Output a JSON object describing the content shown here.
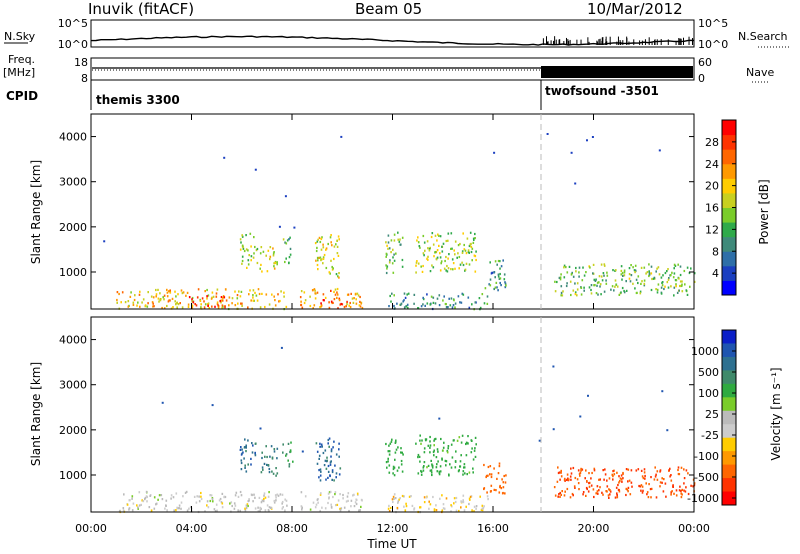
{
  "header": {
    "station": "Inuvik (fitACF)",
    "beam": "Beam 05",
    "date": "10/Mar/2012"
  },
  "meta_panels": {
    "nsky_label": "N.Sky",
    "nsearch_label": "N.Search",
    "freq_label": "Freq.",
    "freq_unit": "[MHz]",
    "nave_label": "Nave",
    "cpid_label": "CPID",
    "noise_ticks_left": [
      "10^5",
      "10^0"
    ],
    "noise_ticks_right": [
      "10^5",
      "10^0"
    ],
    "freq_ticks": [
      "18",
      "8"
    ],
    "nave_ticks": [
      "60",
      "0"
    ],
    "cpid_segments": [
      {
        "name": "themis 3300",
        "start_hour": 0,
        "end_hour": 18
      },
      {
        "name": "twofsound -3501",
        "start_hour": 18,
        "end_hour": 24
      }
    ]
  },
  "chart_data": [
    {
      "type": "heatmap",
      "quantity": "Power",
      "ylabel": "Slant Range [km]",
      "ylim": [
        180,
        4500
      ],
      "y_ticks": [
        1000,
        2000,
        3000,
        4000
      ],
      "xlim": [
        0,
        24
      ],
      "colorbar": {
        "label": "Power [dB]",
        "range": [
          0,
          32
        ],
        "ticks": [
          "4",
          "8",
          "12",
          "16",
          "20",
          "24",
          "28"
        ],
        "colors": [
          "#0000ff",
          "#1b3fc0",
          "#2e6fa8",
          "#3f8a7a",
          "#2faa4a",
          "#7acc2a",
          "#c8d020",
          "#ffcc00",
          "#ff9900",
          "#ff6600",
          "#ff3300",
          "#ff0000"
        ]
      },
      "scatter_regions": [
        {
          "hour_start": 1.0,
          "hour_end": 7.8,
          "range_min": 200,
          "range_max": 650,
          "value": 20
        },
        {
          "hour_start": 3.8,
          "hour_end": 5.4,
          "range_min": 220,
          "range_max": 500,
          "value": 28
        },
        {
          "hour_start": 8.3,
          "hour_end": 10.8,
          "range_min": 220,
          "range_max": 650,
          "value": 22
        },
        {
          "hour_start": 9.0,
          "hour_end": 10.2,
          "range_min": 220,
          "range_max": 450,
          "value": 28
        },
        {
          "hour_start": 11.8,
          "hour_end": 15.8,
          "range_min": 200,
          "range_max": 550,
          "value": 10
        },
        {
          "hour_start": 5.9,
          "hour_end": 6.6,
          "range_min": 1100,
          "range_max": 1900,
          "value": 16
        },
        {
          "hour_start": 6.7,
          "hour_end": 7.4,
          "range_min": 1000,
          "range_max": 1600,
          "value": 18
        },
        {
          "hour_start": 7.6,
          "hour_end": 8.0,
          "range_min": 1200,
          "range_max": 1800,
          "value": 12
        },
        {
          "hour_start": 8.9,
          "hour_end": 9.9,
          "range_min": 900,
          "range_max": 1850,
          "value": 18
        },
        {
          "hour_start": 11.7,
          "hour_end": 12.4,
          "range_min": 1000,
          "range_max": 1900,
          "value": 14
        },
        {
          "hour_start": 12.9,
          "hour_end": 15.3,
          "range_min": 1000,
          "range_max": 1900,
          "value": 16
        },
        {
          "hour_start": 15.6,
          "hour_end": 16.5,
          "range_min": 600,
          "range_max": 1300,
          "value": 10
        },
        {
          "hour_start": 18.4,
          "hour_end": 24.0,
          "range_min": 500,
          "range_max": 1200,
          "value": 14
        }
      ]
    },
    {
      "type": "heatmap",
      "quantity": "Velocity",
      "ylabel": "Slant Range [km]",
      "ylim": [
        180,
        4500
      ],
      "y_ticks": [
        1000,
        2000,
        3000,
        4000
      ],
      "xlim": [
        0,
        24
      ],
      "xlabel": "Time UT",
      "x_ticks": [
        "00:00",
        "04:00",
        "08:00",
        "12:00",
        "16:00",
        "20:00",
        "00:00"
      ],
      "colorbar": {
        "label": "Velocity [m s⁻¹]",
        "ticks": [
          "1000",
          "500",
          "100",
          "25",
          "-25",
          "-100",
          "-500",
          "-1000"
        ],
        "colors": [
          "#0b1fc8",
          "#1f55b0",
          "#2e7090",
          "#3f8a6a",
          "#2faa40",
          "#7acc2a",
          "#bbbbbb",
          "#cccccc",
          "#ffcc00",
          "#ff9900",
          "#ff6600",
          "#ff3300",
          "#ff0000"
        ]
      },
      "scatter_regions": [
        {
          "hour_start": 1.0,
          "hour_end": 7.8,
          "range_min": 200,
          "range_max": 650,
          "value": 25
        },
        {
          "hour_start": 8.3,
          "hour_end": 10.8,
          "range_min": 220,
          "range_max": 650,
          "value": 25
        },
        {
          "hour_start": 11.8,
          "hour_end": 15.8,
          "range_min": 200,
          "range_max": 600,
          "value": 0
        },
        {
          "hour_start": 5.9,
          "hour_end": 6.6,
          "range_min": 1100,
          "range_max": 1900,
          "value": 600
        },
        {
          "hour_start": 6.7,
          "hour_end": 7.4,
          "range_min": 1000,
          "range_max": 1700,
          "value": 500
        },
        {
          "hour_start": 7.6,
          "hour_end": 8.0,
          "range_min": 1200,
          "range_max": 1800,
          "value": 400
        },
        {
          "hour_start": 8.9,
          "hour_end": 9.9,
          "range_min": 900,
          "range_max": 1850,
          "value": 700
        },
        {
          "hour_start": 11.7,
          "hour_end": 12.4,
          "range_min": 1000,
          "range_max": 1900,
          "value": 200
        },
        {
          "hour_start": 12.9,
          "hour_end": 15.3,
          "range_min": 1000,
          "range_max": 1900,
          "value": 150
        },
        {
          "hour_start": 15.6,
          "hour_end": 16.5,
          "range_min": 600,
          "range_max": 1300,
          "value": -200
        },
        {
          "hour_start": 18.4,
          "hour_end": 24.0,
          "range_min": 500,
          "range_max": 1200,
          "value": -300
        }
      ]
    }
  ]
}
